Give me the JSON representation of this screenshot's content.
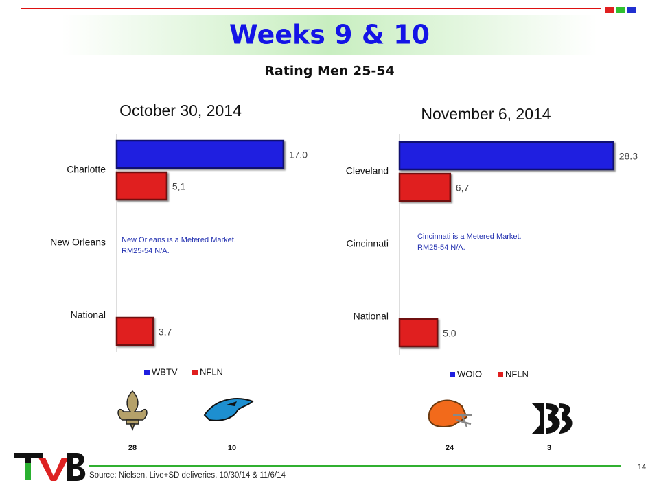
{
  "title": "Weeks 9 & 10",
  "subtitle": "Rating Men 25-54",
  "scores": [
    28,
    10,
    24,
    3
  ],
  "source": "Source: Nielsen, Live+SD deliveries, 10/30/14 & 11/6/14",
  "page": 14,
  "chart_data": [
    {
      "type": "bar",
      "orientation": "horizontal",
      "title": "October 30, 2014",
      "categories": [
        "Charlotte",
        "New Orleans",
        "National"
      ],
      "xlim": [
        0,
        21
      ],
      "series": [
        {
          "name": "WBTV",
          "color": "#1f1fe0",
          "values": [
            17.0,
            null,
            null
          ],
          "value_labels": [
            "17.0",
            null,
            null
          ]
        },
        {
          "name": "NFLN",
          "color": "#e01f1f",
          "values": [
            5.1,
            null,
            3.7
          ],
          "value_labels": [
            "5,1",
            null,
            "3,7"
          ]
        }
      ],
      "annotation": [
        "New Orleans is a Metered Market.",
        "RM25-54  N/A."
      ]
    },
    {
      "type": "bar",
      "orientation": "horizontal",
      "title": "November 6, 2014",
      "categories": [
        "Cleveland",
        "Cincinnati",
        "National"
      ],
      "xlim": [
        0,
        32.5
      ],
      "series": [
        {
          "name": "WOIO",
          "color": "#1f1fe0",
          "values": [
            28.3,
            null,
            null
          ],
          "value_labels": [
            "28.3",
            null,
            null
          ]
        },
        {
          "name": "NFLN",
          "color": "#e01f1f",
          "values": [
            6.7,
            null,
            5.0
          ],
          "value_labels": [
            "6,7",
            null,
            "5.0"
          ]
        }
      ],
      "annotation": [
        "Cincinnati is a Metered Market.",
        "RM25-54  N/A."
      ]
    }
  ]
}
